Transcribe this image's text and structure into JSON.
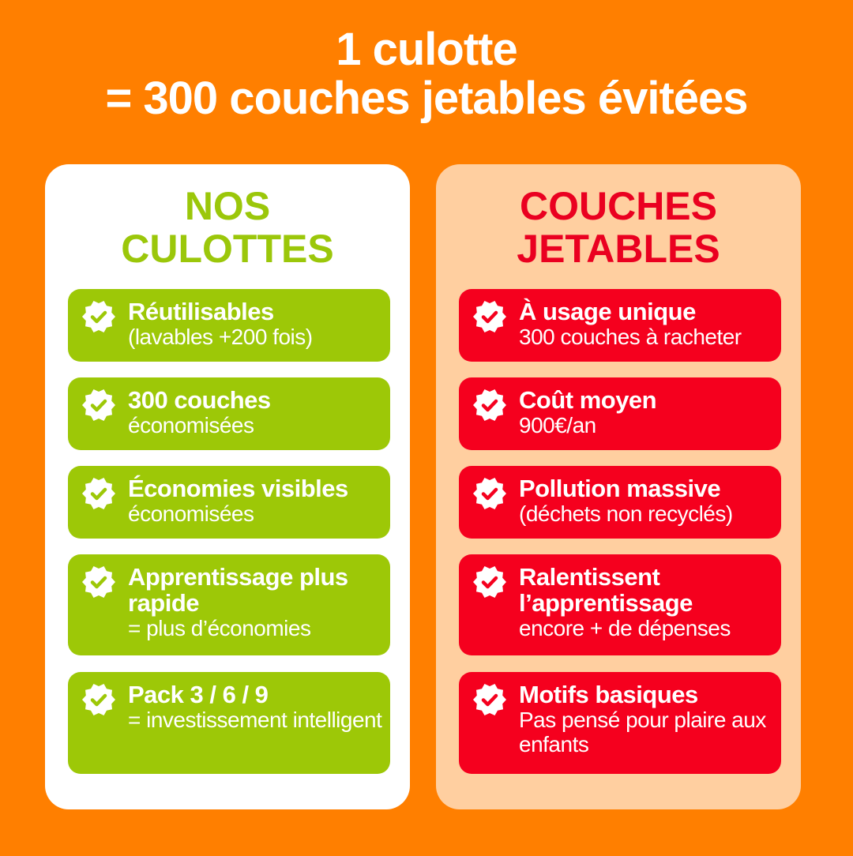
{
  "title": {
    "line1": "1 culotte",
    "line2": "= 300 couches jetables évitées"
  },
  "colors": {
    "background": "#FF7F00",
    "green": "#9DC807",
    "red": "#F5001E",
    "peach": "#FFCFA0"
  },
  "left": {
    "heading1": "NOS",
    "heading2": "CULOTTES",
    "items": [
      {
        "icon": "check-badge-icon",
        "title": "Réutilisables",
        "sub": "(lavables +200 fois)"
      },
      {
        "icon": "check-badge-icon",
        "title": "300 couches",
        "sub": "économisées"
      },
      {
        "icon": "check-badge-icon",
        "title": "Économies visibles",
        "sub": "économisées"
      },
      {
        "icon": "check-badge-icon",
        "title": "Apprentissage plus rapide",
        "sub": "= plus d’économies"
      },
      {
        "icon": "check-badge-icon",
        "title": "Pack 3 / 6 / 9",
        "sub": "= investissement intelligent"
      }
    ]
  },
  "right": {
    "heading1": "COUCHES",
    "heading2": "JETABLES",
    "items": [
      {
        "icon": "check-badge-icon",
        "title": "À usage unique",
        "sub": "300 couches à racheter"
      },
      {
        "icon": "check-badge-icon",
        "title": "Coût moyen",
        "sub": "900€/an"
      },
      {
        "icon": "check-badge-icon",
        "title": "Pollution massive",
        "sub": "(déchets non recyclés)"
      },
      {
        "icon": "check-badge-icon",
        "title": "Ralentissent l’apprentissage",
        "sub": "encore + de dépenses"
      },
      {
        "icon": "check-badge-icon",
        "title": "Motifs basiques",
        "sub": "Pas pensé pour plaire aux enfants"
      }
    ]
  }
}
